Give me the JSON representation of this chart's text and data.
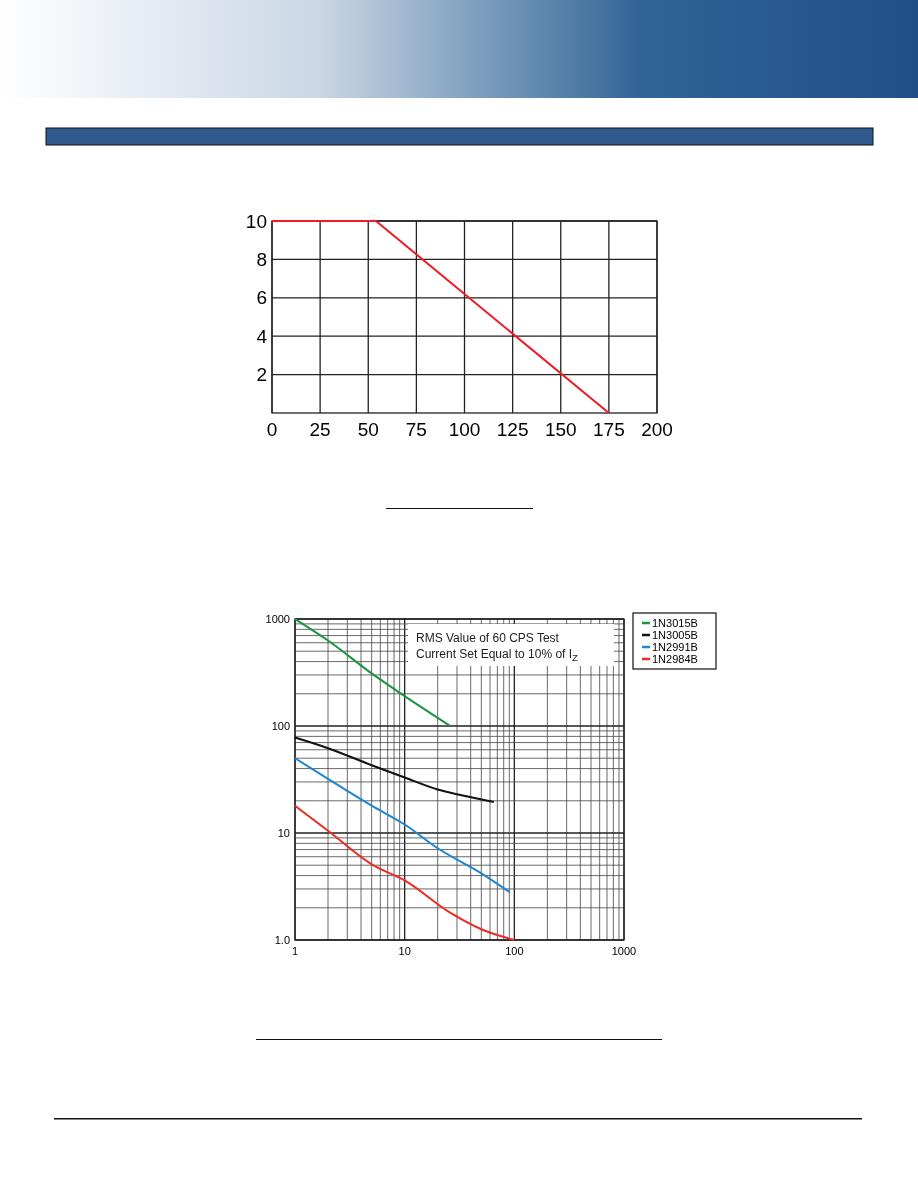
{
  "chart_data": [
    {
      "type": "line",
      "x": [
        0,
        54,
        175
      ],
      "series": [
        {
          "color": "#ee1c25",
          "values": [
            10,
            10,
            0
          ]
        }
      ],
      "xlim": [
        0,
        200
      ],
      "xticks": [
        0,
        25,
        50,
        75,
        100,
        125,
        150,
        175,
        200
      ],
      "ylim": [
        0,
        10
      ],
      "yticks": [
        2,
        4,
        6,
        8,
        10
      ],
      "grid": true
    },
    {
      "type": "line",
      "log": "xy",
      "xlim": [
        1,
        1000
      ],
      "xticks": [
        1,
        10,
        100,
        1000
      ],
      "ylim": [
        1,
        1000
      ],
      "yticks": [
        {
          "value": 1,
          "label": "1.0"
        },
        10,
        100,
        1000
      ],
      "grid": true,
      "legend": "top right",
      "annotations": [
        "RMS Value of 60 CPS Test Current Set Equal to 10% of I$_{Z}$"
      ],
      "series": [
        {
          "name": "1N3015B",
          "color": "#1a9641",
          "x": [
            1,
            2,
            5,
            10,
            26
          ],
          "values": [
            1000,
            630,
            310,
            190,
            100
          ]
        },
        {
          "name": "1N3005B",
          "color": "#111111",
          "x": [
            1,
            2,
            5,
            10,
            20,
            30,
            65
          ],
          "values": [
            78,
            62,
            43,
            33,
            25.5,
            23,
            19.5
          ]
        },
        {
          "name": "1N2991B",
          "color": "#1f86d0",
          "x": [
            1,
            2,
            5,
            10,
            20,
            50,
            91
          ],
          "values": [
            50,
            32,
            18,
            12,
            7.2,
            4.2,
            2.8
          ]
        },
        {
          "name": "1N2984B",
          "color": "#ee2a24",
          "x": [
            1,
            2,
            5,
            10,
            26,
            50,
            100
          ],
          "values": [
            18,
            10.5,
            5.1,
            3.6,
            1.8,
            1.26,
            1.0
          ]
        }
      ]
    }
  ]
}
